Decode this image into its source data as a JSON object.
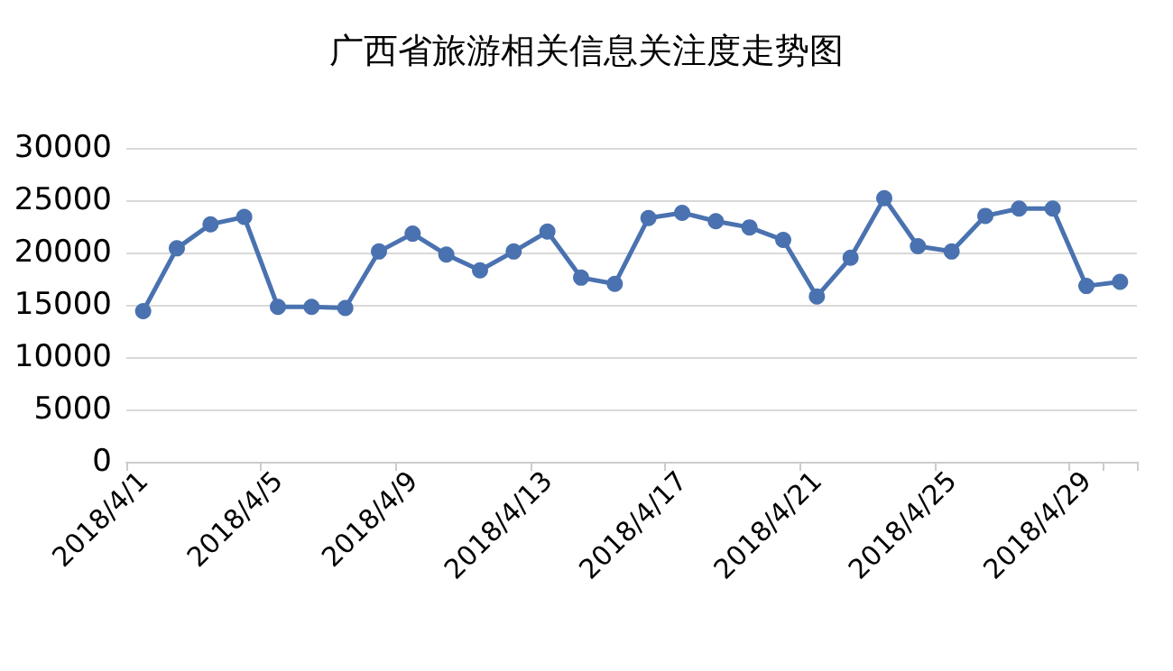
{
  "chart_data": {
    "type": "line",
    "title": "广西省旅游相关信息关注度走势图",
    "categories": [
      "2018/4/1",
      null,
      null,
      null,
      "2018/4/5",
      null,
      null,
      null,
      "2018/4/9",
      null,
      null,
      null,
      "2018/4/13",
      null,
      null,
      null,
      "2018/4/17",
      null,
      null,
      null,
      "2018/4/21",
      null,
      null,
      null,
      "2018/4/25",
      null,
      null,
      null,
      "2018/4/29",
      null
    ],
    "series": [
      {
        "color": "#4a72b0",
        "values": [
          14400,
          20400,
          22700,
          23400,
          14800,
          14800,
          14700,
          20100,
          21800,
          19800,
          18300,
          20100,
          22000,
          17600,
          17000,
          23300,
          23800,
          23000,
          22400,
          21200,
          15800,
          19500,
          25200,
          20600,
          20100,
          23500,
          24200,
          24200,
          16800,
          17200
        ]
      }
    ],
    "ylim": [
      0,
      30000
    ],
    "yticks": [
      0,
      5000,
      10000,
      15000,
      20000,
      25000,
      30000
    ],
    "grid": "y",
    "marker": "circle",
    "line_style": "solid"
  }
}
